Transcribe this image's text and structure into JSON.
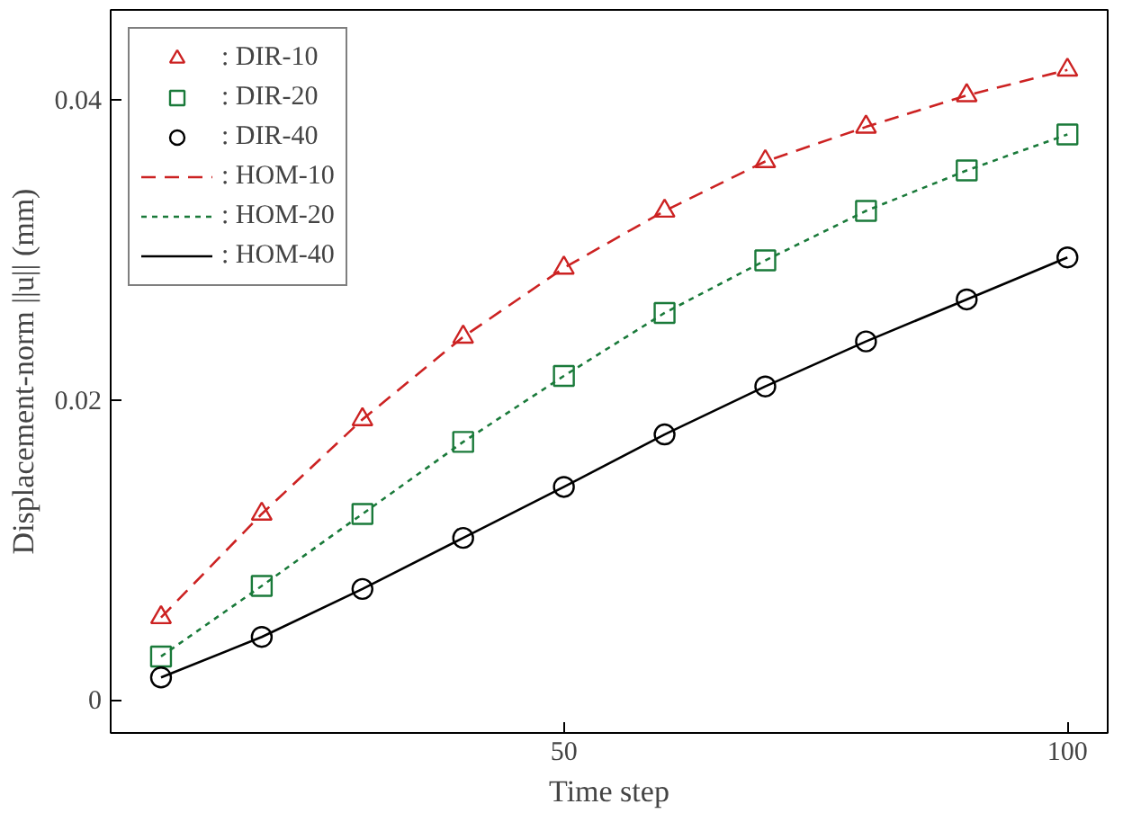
{
  "chart_data": {
    "type": "line",
    "xlabel": "Time step",
    "ylabel": "Displacement-norm ||u|| (mm)",
    "x": [
      10,
      20,
      30,
      40,
      50,
      60,
      70,
      80,
      90,
      100
    ],
    "series": [
      {
        "name": ": DIR-10",
        "type": "scatter",
        "marker": "triangle",
        "color": "#cc2222",
        "values": [
          0.0055,
          0.0124,
          0.0187,
          0.0242,
          0.0288,
          0.0326,
          0.0359,
          0.0382,
          0.0403,
          0.042
        ]
      },
      {
        "name": ": DIR-20",
        "type": "scatter",
        "marker": "square",
        "color": "#1a7a3a",
        "values": [
          0.0029,
          0.0076,
          0.0124,
          0.0172,
          0.0216,
          0.0258,
          0.0293,
          0.0326,
          0.0353,
          0.0377
        ]
      },
      {
        "name": ": DIR-40",
        "type": "scatter",
        "marker": "circle",
        "color": "#000000",
        "values": [
          0.0015,
          0.0042,
          0.0074,
          0.0108,
          0.0142,
          0.0177,
          0.0209,
          0.0239,
          0.0267,
          0.0295
        ]
      },
      {
        "name": ": HOM-10",
        "line_style": "dashed",
        "color": "#cc2222",
        "values": [
          0.0055,
          0.0124,
          0.0187,
          0.0242,
          0.0288,
          0.0326,
          0.0359,
          0.0382,
          0.0403,
          0.042
        ]
      },
      {
        "name": ": HOM-20",
        "line_style": "dotted",
        "color": "#1a7a3a",
        "values": [
          0.0029,
          0.0076,
          0.0124,
          0.0172,
          0.0216,
          0.0258,
          0.0293,
          0.0326,
          0.0353,
          0.0377
        ]
      },
      {
        "name": ": HOM-40",
        "line_style": "solid",
        "color": "#000000",
        "values": [
          0.0015,
          0.0042,
          0.0074,
          0.0108,
          0.0142,
          0.0177,
          0.0209,
          0.0239,
          0.0267,
          0.0295
        ]
      }
    ],
    "xlim": [
      5,
      104
    ],
    "ylim": [
      -0.0022,
      0.046
    ],
    "xticks": [
      50,
      100
    ],
    "yticks": [
      0,
      0.02,
      0.04
    ],
    "grid": false,
    "legend": "top left"
  }
}
